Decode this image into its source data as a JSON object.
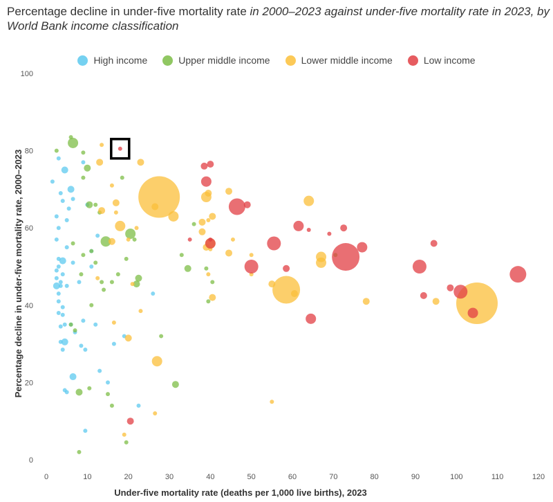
{
  "chart_data": {
    "type": "scatter",
    "title_main": "Percentage decline in under-five mortality rate",
    "title_italic": "in 2000–2023 against under-five mortality rate in 2023, by World Bank income classification",
    "xlabel": "Under-five mortality rate (deaths per 1,000 live births), 2023",
    "ylabel": "Percentage decline in under-five mortality rate, 2000–2023",
    "xlim": [
      0,
      120
    ],
    "ylim": [
      0,
      100
    ],
    "xticks": [
      "0",
      "10",
      "20",
      "30",
      "40",
      "50",
      "60",
      "70",
      "80",
      "90",
      "100",
      "110",
      "120"
    ],
    "yticks": [
      "0",
      "20",
      "40",
      "60",
      "80",
      "100"
    ],
    "highlight": {
      "x": 18,
      "y": 80.5
    },
    "series": [
      {
        "name": "High income",
        "color": "#5dc9ef",
        "points": [
          [
            1.5,
            72,
            1
          ],
          [
            2.5,
            63,
            1
          ],
          [
            2.5,
            57,
            1
          ],
          [
            3,
            78,
            1
          ],
          [
            3.5,
            69,
            1
          ],
          [
            4,
            67,
            1
          ],
          [
            4.5,
            75,
            2
          ],
          [
            5,
            62,
            1
          ],
          [
            5.5,
            65,
            1
          ],
          [
            6,
            70,
            2
          ],
          [
            6.5,
            67.5,
            1
          ],
          [
            3,
            60,
            1
          ],
          [
            5,
            55,
            1
          ],
          [
            3,
            52,
            1
          ],
          [
            4,
            51.5,
            2
          ],
          [
            3,
            50,
            1
          ],
          [
            2.5,
            49,
            1
          ],
          [
            4,
            48,
            1
          ],
          [
            2.5,
            47,
            1
          ],
          [
            3.5,
            46,
            1
          ],
          [
            2.5,
            45,
            2
          ],
          [
            3.5,
            45,
            1
          ],
          [
            5,
            45,
            1
          ],
          [
            3,
            43,
            1
          ],
          [
            3,
            41,
            1
          ],
          [
            4,
            39.5,
            1
          ],
          [
            3,
            38,
            1
          ],
          [
            4,
            37.5,
            1
          ],
          [
            3.5,
            34.5,
            1
          ],
          [
            4.5,
            35,
            1
          ],
          [
            6,
            35,
            1
          ],
          [
            3.5,
            30.5,
            1
          ],
          [
            4.5,
            30.5,
            2
          ],
          [
            4,
            28.5,
            1
          ],
          [
            7,
            33,
            1
          ],
          [
            8.5,
            29.5,
            1
          ],
          [
            9.5,
            28.5,
            1
          ],
          [
            6.5,
            21.5,
            2
          ],
          [
            4.5,
            18,
            1
          ],
          [
            5,
            17.5,
            1
          ],
          [
            9,
            36,
            1
          ],
          [
            8,
            46,
            1
          ],
          [
            12,
            35,
            1
          ],
          [
            13,
            23,
            1
          ],
          [
            15,
            20,
            1
          ],
          [
            9.5,
            7.5,
            1
          ],
          [
            19,
            32,
            1
          ],
          [
            22.5,
            14,
            1
          ],
          [
            26,
            43,
            1
          ],
          [
            16.5,
            30,
            1
          ],
          [
            9,
            77,
            1
          ],
          [
            10,
            66,
            1
          ],
          [
            11,
            54,
            1
          ],
          [
            12.5,
            58,
            1
          ],
          [
            11,
            50,
            1
          ],
          [
            6.5,
            51,
            1
          ]
        ]
      },
      {
        "name": "Upper middle income",
        "color": "#7dbd47",
        "points": [
          [
            6.5,
            82,
            3
          ],
          [
            2.5,
            80,
            1
          ],
          [
            6,
            83.5,
            1
          ],
          [
            9,
            79.5,
            1
          ],
          [
            10,
            75.5,
            2
          ],
          [
            9,
            73,
            1
          ],
          [
            18.5,
            73,
            1
          ],
          [
            10.5,
            66,
            2
          ],
          [
            12,
            66,
            1
          ],
          [
            13,
            64,
            1
          ],
          [
            14.5,
            56.5,
            3
          ],
          [
            20.5,
            58.5,
            3
          ],
          [
            21.5,
            57,
            1
          ],
          [
            11,
            54,
            1
          ],
          [
            9,
            53,
            1
          ],
          [
            12,
            51,
            1
          ],
          [
            8.5,
            48,
            1
          ],
          [
            13.5,
            46,
            1
          ],
          [
            16,
            46,
            1
          ],
          [
            17.5,
            48,
            1
          ],
          [
            19.5,
            52,
            1
          ],
          [
            22.5,
            47,
            2
          ],
          [
            22,
            45.5,
            2
          ],
          [
            14,
            44,
            1
          ],
          [
            11,
            40,
            1
          ],
          [
            6,
            35,
            1
          ],
          [
            7,
            33.5,
            1
          ],
          [
            28,
            32,
            1
          ],
          [
            31.5,
            19.5,
            2
          ],
          [
            8,
            17.5,
            2
          ],
          [
            10.5,
            18.5,
            1
          ],
          [
            15,
            17,
            1
          ],
          [
            16,
            14,
            1
          ],
          [
            8,
            2,
            1
          ],
          [
            19.5,
            4.5,
            1
          ],
          [
            34.5,
            49.5,
            2
          ],
          [
            39,
            49.5,
            1
          ],
          [
            40.5,
            46,
            1
          ],
          [
            39.5,
            41,
            1
          ],
          [
            36,
            61,
            1
          ],
          [
            33,
            53,
            1
          ],
          [
            70.5,
            53,
            1
          ],
          [
            6.5,
            56,
            1
          ]
        ]
      },
      {
        "name": "Lower middle income",
        "color": "#fbbf3a",
        "points": [
          [
            13.5,
            81.5,
            1
          ],
          [
            23,
            77,
            2
          ],
          [
            13,
            77,
            2
          ],
          [
            13.5,
            64.5,
            2
          ],
          [
            16,
            71,
            1
          ],
          [
            17,
            66.5,
            2
          ],
          [
            17,
            64,
            1
          ],
          [
            18,
            60.5,
            3
          ],
          [
            16,
            56.5,
            2
          ],
          [
            20,
            57,
            1
          ],
          [
            27.5,
            68,
            9
          ],
          [
            26.5,
            65.5,
            2
          ],
          [
            31,
            63,
            3
          ],
          [
            39,
            68,
            3
          ],
          [
            39.5,
            69,
            2
          ],
          [
            44.5,
            69.5,
            2
          ],
          [
            38,
            61.5,
            2
          ],
          [
            38,
            59,
            2
          ],
          [
            39.5,
            62,
            1
          ],
          [
            40,
            56,
            3
          ],
          [
            40.5,
            63,
            2
          ],
          [
            39,
            55,
            2
          ],
          [
            40,
            54.5,
            1
          ],
          [
            44.5,
            53.5,
            2
          ],
          [
            45.5,
            57,
            1
          ],
          [
            50,
            53,
            1
          ],
          [
            39.5,
            48,
            1
          ],
          [
            40.5,
            42,
            2
          ],
          [
            50,
            48,
            1
          ],
          [
            55,
            45.5,
            2
          ],
          [
            58.5,
            44,
            7
          ],
          [
            64,
            67,
            3
          ],
          [
            67,
            51,
            3
          ],
          [
            67,
            52.5,
            3
          ],
          [
            60.5,
            43,
            2
          ],
          [
            78,
            41,
            2
          ],
          [
            95,
            41,
            2
          ],
          [
            105,
            40.5,
            9
          ],
          [
            23,
            38.5,
            1
          ],
          [
            20,
            31.5,
            2
          ],
          [
            16.5,
            35.5,
            1
          ],
          [
            27,
            25.5,
            3
          ],
          [
            26.5,
            12,
            1
          ],
          [
            19,
            6.5,
            1
          ],
          [
            55,
            15,
            1
          ],
          [
            12.5,
            47,
            1
          ],
          [
            22,
            60,
            1
          ],
          [
            21,
            45.5,
            1
          ]
        ]
      },
      {
        "name": "Low income",
        "color": "#e23f44",
        "points": [
          [
            18,
            80.5,
            1
          ],
          [
            40,
            76.5,
            2
          ],
          [
            38.5,
            76,
            2
          ],
          [
            39,
            72,
            3
          ],
          [
            46.5,
            65.5,
            5
          ],
          [
            49,
            66,
            2
          ],
          [
            61.5,
            60.5,
            3
          ],
          [
            64,
            59.5,
            1
          ],
          [
            69,
            58.5,
            1
          ],
          [
            72.5,
            60,
            2
          ],
          [
            35,
            57,
            1
          ],
          [
            40,
            56,
            3
          ],
          [
            55.5,
            56,
            4
          ],
          [
            58.5,
            49.5,
            2
          ],
          [
            50,
            50,
            4
          ],
          [
            73,
            52.5,
            7
          ],
          [
            77,
            55,
            3
          ],
          [
            91,
            50,
            4
          ],
          [
            94.5,
            56,
            2
          ],
          [
            92,
            42.5,
            2
          ],
          [
            98.5,
            44.5,
            2
          ],
          [
            101,
            43.5,
            4
          ],
          [
            104,
            38,
            3
          ],
          [
            115,
            48,
            5
          ],
          [
            64.5,
            36.5,
            3
          ],
          [
            20.5,
            10,
            2
          ],
          [
            40,
            57,
            1
          ]
        ]
      }
    ]
  }
}
